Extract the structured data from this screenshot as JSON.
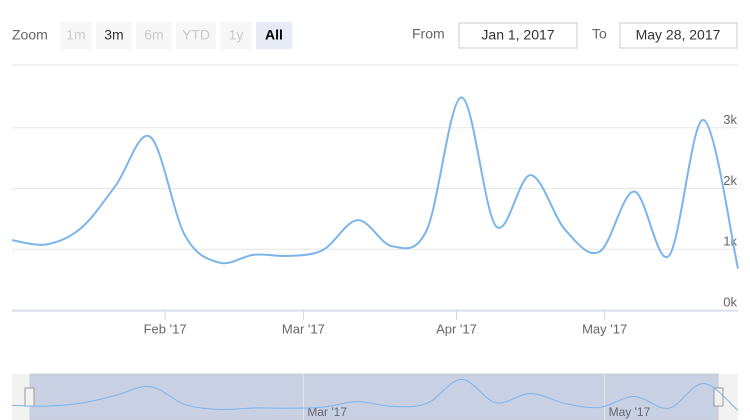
{
  "range_selector": {
    "zoom_label": "Zoom",
    "buttons": [
      {
        "label": "1m",
        "state": "disabled"
      },
      {
        "label": "3m",
        "state": "enabled"
      },
      {
        "label": "6m",
        "state": "disabled"
      },
      {
        "label": "YTD",
        "state": "disabled"
      },
      {
        "label": "1y",
        "state": "disabled"
      },
      {
        "label": "All",
        "state": "selected"
      }
    ],
    "from_label": "From",
    "from": "Jan 1, 2017",
    "to_label": "To",
    "to": "May 28, 2017"
  },
  "chart_data": {
    "type": "line",
    "color": "#7cb5ec",
    "grid": true,
    "x": [
      "2017-01-01",
      "2017-01-08",
      "2017-01-15",
      "2017-01-22",
      "2017-01-29",
      "2017-02-05",
      "2017-02-12",
      "2017-02-19",
      "2017-02-26",
      "2017-03-05",
      "2017-03-12",
      "2017-03-19",
      "2017-03-26",
      "2017-04-02",
      "2017-04-09",
      "2017-04-16",
      "2017-04-23",
      "2017-04-30",
      "2017-05-07",
      "2017-05-14",
      "2017-05-21",
      "2017-05-28"
    ],
    "values": [
      1150,
      1080,
      1350,
      2050,
      2850,
      1230,
      780,
      910,
      890,
      990,
      1480,
      1050,
      1320,
      3500,
      1380,
      2220,
      1320,
      960,
      1950,
      890,
      3130,
      680
    ],
    "xlim": [
      "2017-01-01",
      "2017-05-28"
    ],
    "xticks": [
      {
        "value": "2017-02-01",
        "label": "Feb '17"
      },
      {
        "value": "2017-03-01",
        "label": "Mar '17"
      },
      {
        "value": "2017-04-01",
        "label": "Apr '17"
      },
      {
        "value": "2017-05-01",
        "label": "May '17"
      }
    ],
    "ylim": [
      0,
      4000
    ],
    "yticks": [
      {
        "value": 0,
        "label": "0k"
      },
      {
        "value": 1000,
        "label": "1k"
      },
      {
        "value": 2000,
        "label": "2k"
      },
      {
        "value": 3000,
        "label": "3k"
      }
    ]
  }
}
